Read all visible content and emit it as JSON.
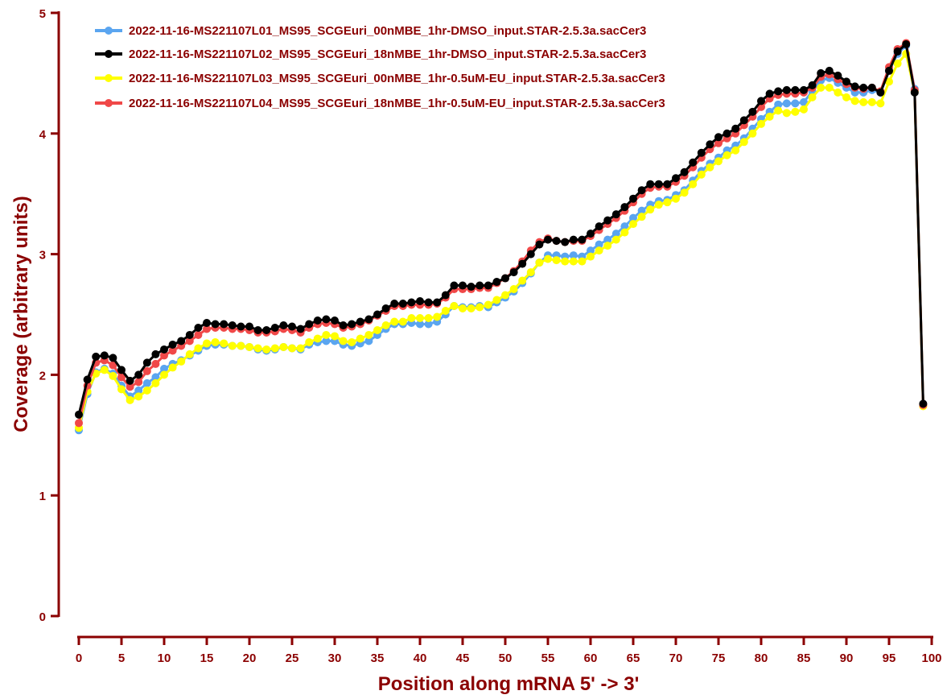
{
  "colors": {
    "axis": "#8B0000",
    "text": "#8B0000",
    "series": [
      "#5AA5F0",
      "#000000",
      "#FFFF00",
      "#F04848"
    ]
  },
  "chart_data": {
    "type": "line",
    "title": "",
    "xlabel": "Position along mRNA 5' -> 3'",
    "ylabel": "Coverage (arbitrary units)",
    "xlim": [
      0,
      100
    ],
    "ylim": [
      0,
      5
    ],
    "xticks": [
      0,
      5,
      10,
      15,
      20,
      25,
      30,
      35,
      40,
      45,
      50,
      55,
      60,
      65,
      70,
      75,
      80,
      85,
      90,
      95,
      100
    ],
    "yticks": [
      0,
      1,
      2,
      3,
      4,
      5
    ],
    "grid": false,
    "legend_position": "top",
    "x": [
      0,
      1,
      2,
      3,
      4,
      5,
      6,
      7,
      8,
      9,
      10,
      11,
      12,
      13,
      14,
      15,
      16,
      17,
      18,
      19,
      20,
      21,
      22,
      23,
      24,
      25,
      26,
      27,
      28,
      29,
      30,
      31,
      32,
      33,
      34,
      35,
      36,
      37,
      38,
      39,
      40,
      41,
      42,
      43,
      44,
      45,
      46,
      47,
      48,
      49,
      50,
      51,
      52,
      53,
      54,
      55,
      56,
      57,
      58,
      59,
      60,
      61,
      62,
      63,
      64,
      65,
      66,
      67,
      68,
      69,
      70,
      71,
      72,
      73,
      74,
      75,
      76,
      77,
      78,
      79,
      80,
      81,
      82,
      83,
      84,
      85,
      86,
      87,
      88,
      89,
      90,
      91,
      92,
      93,
      94,
      95,
      96,
      97,
      98,
      99
    ],
    "series": [
      {
        "name": "2022-11-16-MS221107L01_MS95_SCGEuri_00nMBE_1hr-DMSO_input.STAR-2.5.3a.sacCer3",
        "color": "#5AA5F0",
        "values": [
          1.54,
          1.84,
          2.02,
          2.05,
          2.01,
          1.91,
          1.82,
          1.87,
          1.93,
          1.98,
          2.05,
          2.09,
          2.12,
          2.16,
          2.2,
          2.24,
          2.25,
          2.25,
          2.24,
          2.24,
          2.23,
          2.21,
          2.2,
          2.21,
          2.23,
          2.22,
          2.21,
          2.25,
          2.27,
          2.28,
          2.28,
          2.25,
          2.24,
          2.26,
          2.28,
          2.33,
          2.38,
          2.42,
          2.42,
          2.43,
          2.42,
          2.42,
          2.44,
          2.5,
          2.57,
          2.56,
          2.56,
          2.57,
          2.56,
          2.6,
          2.64,
          2.69,
          2.76,
          2.84,
          2.93,
          2.99,
          2.99,
          2.98,
          2.99,
          2.98,
          3.03,
          3.08,
          3.12,
          3.17,
          3.23,
          3.3,
          3.36,
          3.41,
          3.44,
          3.45,
          3.49,
          3.53,
          3.61,
          3.69,
          3.75,
          3.8,
          3.86,
          3.9,
          3.96,
          4.04,
          4.12,
          4.18,
          4.24,
          4.25,
          4.25,
          4.26,
          4.35,
          4.44,
          4.46,
          4.42,
          4.38,
          4.34,
          4.34,
          4.36,
          4.34,
          4.52,
          4.66,
          4.73,
          4.37,
          1.75
        ]
      },
      {
        "name": "2022-11-16-MS221107L02_MS95_SCGEuri_18nMBE_1hr-DMSO_input.STAR-2.5.3a.sacCer3",
        "color": "#000000",
        "values": [
          1.67,
          1.96,
          2.15,
          2.16,
          2.14,
          2.04,
          1.95,
          2.0,
          2.1,
          2.17,
          2.21,
          2.25,
          2.28,
          2.33,
          2.39,
          2.43,
          2.42,
          2.42,
          2.41,
          2.4,
          2.4,
          2.37,
          2.37,
          2.39,
          2.41,
          2.4,
          2.38,
          2.42,
          2.45,
          2.46,
          2.45,
          2.41,
          2.42,
          2.44,
          2.46,
          2.5,
          2.55,
          2.59,
          2.59,
          2.6,
          2.61,
          2.6,
          2.6,
          2.66,
          2.74,
          2.74,
          2.73,
          2.74,
          2.74,
          2.77,
          2.8,
          2.85,
          2.92,
          3.0,
          3.08,
          3.12,
          3.11,
          3.1,
          3.12,
          3.12,
          3.17,
          3.23,
          3.28,
          3.33,
          3.39,
          3.46,
          3.53,
          3.58,
          3.58,
          3.58,
          3.63,
          3.68,
          3.76,
          3.84,
          3.91,
          3.97,
          4.0,
          4.04,
          4.11,
          4.18,
          4.27,
          4.33,
          4.35,
          4.36,
          4.36,
          4.36,
          4.4,
          4.5,
          4.52,
          4.48,
          4.43,
          4.39,
          4.38,
          4.38,
          4.34,
          4.52,
          4.68,
          4.74,
          4.34,
          1.76
        ]
      },
      {
        "name": "2022-11-16-MS221107L03_MS95_SCGEuri_00nMBE_1hr-0.5uM-EU_input.STAR-2.5.3a.sacCer3",
        "color": "#FFFF00",
        "values": [
          1.56,
          1.86,
          2.01,
          2.04,
          1.99,
          1.88,
          1.79,
          1.82,
          1.87,
          1.93,
          2.0,
          2.06,
          2.11,
          2.17,
          2.22,
          2.26,
          2.27,
          2.26,
          2.24,
          2.24,
          2.23,
          2.22,
          2.21,
          2.22,
          2.23,
          2.22,
          2.22,
          2.27,
          2.3,
          2.33,
          2.32,
          2.28,
          2.27,
          2.3,
          2.33,
          2.37,
          2.41,
          2.44,
          2.44,
          2.47,
          2.47,
          2.47,
          2.48,
          2.53,
          2.57,
          2.55,
          2.55,
          2.56,
          2.58,
          2.62,
          2.66,
          2.71,
          2.78,
          2.85,
          2.93,
          2.96,
          2.95,
          2.94,
          2.94,
          2.94,
          2.98,
          3.03,
          3.07,
          3.12,
          3.18,
          3.25,
          3.31,
          3.37,
          3.41,
          3.43,
          3.46,
          3.51,
          3.58,
          3.66,
          3.72,
          3.77,
          3.82,
          3.86,
          3.93,
          4.0,
          4.08,
          4.14,
          4.19,
          4.17,
          4.18,
          4.2,
          4.3,
          4.38,
          4.38,
          4.34,
          4.3,
          4.27,
          4.26,
          4.26,
          4.25,
          4.43,
          4.58,
          4.66,
          4.35,
          1.74
        ]
      },
      {
        "name": "2022-11-16-MS221107L04_MS95_SCGEuri_18nMBE_1hr-0.5uM-EU_input.STAR-2.5.3a.sacCer3",
        "color": "#F04848",
        "values": [
          1.6,
          1.91,
          2.1,
          2.12,
          2.08,
          1.98,
          1.9,
          1.94,
          2.03,
          2.09,
          2.16,
          2.2,
          2.24,
          2.28,
          2.33,
          2.38,
          2.39,
          2.39,
          2.38,
          2.38,
          2.37,
          2.35,
          2.35,
          2.36,
          2.38,
          2.37,
          2.35,
          2.39,
          2.42,
          2.43,
          2.42,
          2.39,
          2.4,
          2.42,
          2.45,
          2.49,
          2.53,
          2.57,
          2.57,
          2.58,
          2.58,
          2.58,
          2.59,
          2.64,
          2.71,
          2.71,
          2.71,
          2.72,
          2.72,
          2.76,
          2.8,
          2.86,
          2.94,
          3.03,
          3.1,
          3.13,
          3.11,
          3.1,
          3.11,
          3.11,
          3.15,
          3.2,
          3.25,
          3.3,
          3.36,
          3.43,
          3.5,
          3.55,
          3.56,
          3.56,
          3.6,
          3.65,
          3.72,
          3.8,
          3.87,
          3.92,
          3.96,
          4.0,
          4.07,
          4.14,
          4.22,
          4.29,
          4.32,
          4.33,
          4.33,
          4.34,
          4.38,
          4.47,
          4.49,
          4.45,
          4.41,
          4.38,
          4.37,
          4.38,
          4.35,
          4.55,
          4.7,
          4.75,
          4.36,
          1.75
        ]
      }
    ]
  }
}
